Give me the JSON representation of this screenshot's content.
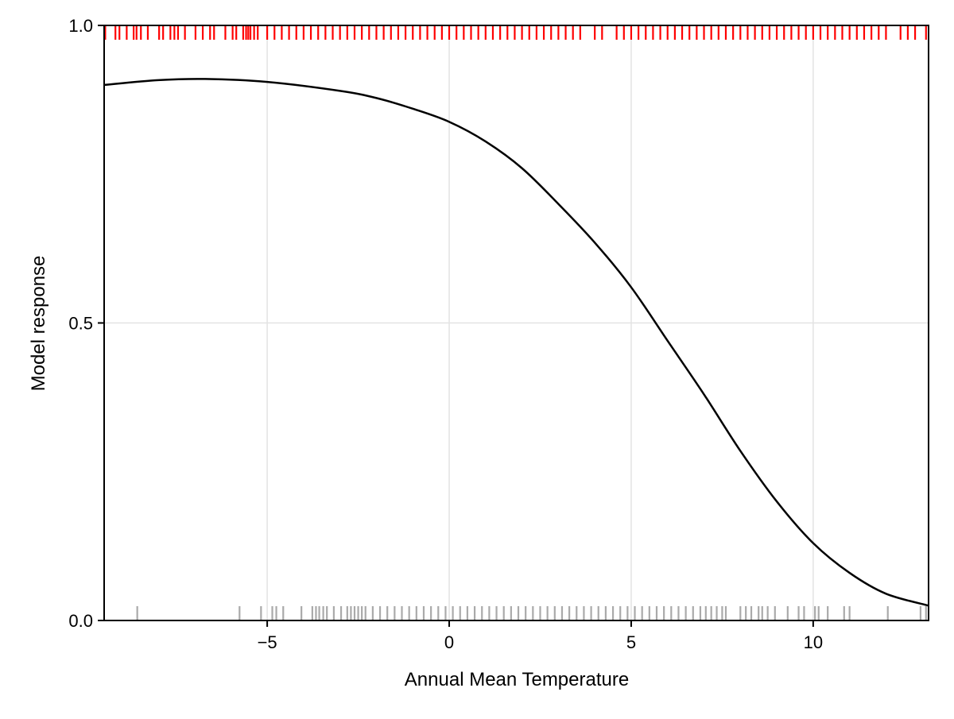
{
  "chart_data": {
    "type": "line",
    "title": "",
    "xlabel": "Annual Mean Temperature",
    "ylabel": "Model response",
    "xlim": [
      -9.48,
      13.17
    ],
    "ylim": [
      0,
      1
    ],
    "grid": true,
    "xticks": [
      -5,
      0,
      5,
      10
    ],
    "xtick_labels": [
      "−5",
      "0",
      "5",
      "10"
    ],
    "yticks": [
      0,
      0.5,
      1
    ],
    "ytick_labels": [
      "0.0",
      "0.5",
      "1.0"
    ],
    "series": [
      {
        "type": "line",
        "color": "#000000",
        "x": [
          -9.48,
          -8,
          -6.7,
          -5,
          -3,
          -2,
          -1,
          0,
          1,
          2,
          3,
          4,
          5,
          6,
          7,
          8,
          9,
          10,
          11,
          12,
          13.17
        ],
        "y": [
          0.9,
          0.908,
          0.91,
          0.905,
          0.89,
          0.878,
          0.86,
          0.838,
          0.805,
          0.76,
          0.7,
          0.635,
          0.56,
          0.47,
          0.38,
          0.285,
          0.2,
          0.13,
          0.08,
          0.045,
          0.025
        ]
      }
    ],
    "rug_presence": {
      "color": "#ff0000",
      "position": "top",
      "x": [
        -9.45,
        -9.17,
        -9.06,
        -8.86,
        -8.67,
        -8.59,
        -8.47,
        -8.28,
        -7.97,
        -7.86,
        -7.66,
        -7.55,
        -7.45,
        -7.26,
        -6.97,
        -6.77,
        -6.57,
        -6.46,
        -6.15,
        -5.95,
        -5.85,
        -5.66,
        -5.58,
        -5.52,
        -5.46,
        -5.36,
        -5.26,
        -5.0,
        -4.8,
        -4.6,
        -4.4,
        -4.2,
        -4.0,
        -3.8,
        -3.6,
        -3.4,
        -3.2,
        -3.0,
        -2.8,
        -2.6,
        -2.4,
        -2.2,
        -2.0,
        -1.8,
        -1.6,
        -1.4,
        -1.2,
        -1.0,
        -0.8,
        -0.6,
        -0.4,
        -0.2,
        0.0,
        0.2,
        0.4,
        0.6,
        0.8,
        1.0,
        1.2,
        1.4,
        1.6,
        1.8,
        2.0,
        2.2,
        2.4,
        2.6,
        2.8,
        3.0,
        3.2,
        3.4,
        3.6,
        4.0,
        4.2,
        4.6,
        4.8,
        5.0,
        5.2,
        5.4,
        5.6,
        5.8,
        6.0,
        6.2,
        6.4,
        6.6,
        6.8,
        7.0,
        7.2,
        7.4,
        7.6,
        7.8,
        8.0,
        8.2,
        8.4,
        8.6,
        8.8,
        9.0,
        9.2,
        9.4,
        9.6,
        9.8,
        10.0,
        10.2,
        10.4,
        10.6,
        10.8,
        11.0,
        11.2,
        11.4,
        11.6,
        11.8,
        12.0,
        12.4,
        12.6,
        12.8,
        13.1
      ]
    },
    "rug_absence": {
      "color": "#aaaaaa",
      "position": "bottom",
      "x": [
        -8.57,
        -5.76,
        -5.17,
        -4.86,
        -4.75,
        -4.56,
        -4.06,
        -3.76,
        -3.66,
        -3.57,
        -3.46,
        -3.36,
        -3.17,
        -2.97,
        -2.8,
        -2.7,
        -2.6,
        -2.5,
        -2.4,
        -2.3,
        -2.1,
        -1.9,
        -1.7,
        -1.5,
        -1.3,
        -1.1,
        -0.9,
        -0.7,
        -0.5,
        -0.3,
        -0.1,
        0.1,
        0.3,
        0.5,
        0.7,
        0.9,
        1.1,
        1.3,
        1.5,
        1.7,
        1.9,
        2.1,
        2.3,
        2.5,
        2.7,
        2.9,
        3.1,
        3.3,
        3.5,
        3.7,
        3.9,
        4.1,
        4.3,
        4.5,
        4.7,
        4.9,
        5.1,
        5.3,
        5.5,
        5.7,
        5.9,
        6.1,
        6.3,
        6.5,
        6.7,
        6.9,
        7.05,
        7.2,
        7.35,
        7.5,
        7.6,
        8.0,
        8.15,
        8.3,
        8.5,
        8.6,
        8.75,
        8.95,
        9.3,
        9.6,
        9.75,
        10.05,
        10.15,
        10.4,
        10.85,
        11.0,
        12.05,
        12.95,
        13.1
      ]
    }
  }
}
